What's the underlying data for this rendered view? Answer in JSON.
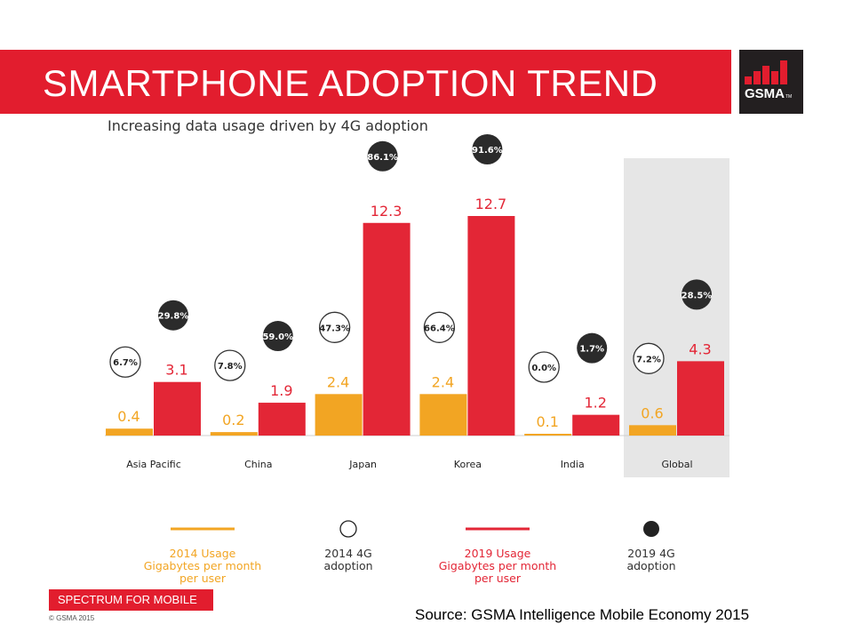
{
  "header": {
    "title": "SMARTPHONE ADOPTION TREND",
    "logo_text": "GSMA",
    "logo_tm": "TM"
  },
  "footer": {
    "tag": "SPECTRUM FOR MOBILE",
    "copyright": "© GSMA 2015",
    "source": "Source: GSMA Intelligence Mobile Economy 2015"
  },
  "colors": {
    "brand_red": "#e21d2e",
    "bar_2014": "#f2a523",
    "bar_2019": "#e32636",
    "badge_dark": "#2b2b2b",
    "highlight_panel": "#e6e6e6"
  },
  "chart_data": {
    "type": "bar",
    "title": "Increasing data usage driven by 4G adoption",
    "categories": [
      "Asia Pacific",
      "China",
      "Japan",
      "Korea",
      "India",
      "Global"
    ],
    "highlighted_category": "Global",
    "series": [
      {
        "name": "2014 Usage Gigabytes per month per user",
        "values": [
          0.4,
          0.2,
          2.4,
          2.4,
          0.1,
          0.6
        ],
        "labels": [
          "0.4",
          "0.2",
          "2.4",
          "2.4",
          "0.1",
          "0.6"
        ]
      },
      {
        "name": "2019 Usage Gigabytes per month per user",
        "values": [
          3.1,
          1.9,
          12.3,
          12.7,
          1.2,
          4.3
        ],
        "labels": [
          "3.1",
          "1.9",
          "12.3",
          "12.7",
          "1.2",
          "4.3"
        ]
      }
    ],
    "adoption_4g": [
      {
        "name": "2014 4G adoption",
        "marker": "open-circle",
        "values": [
          6.7,
          7.8,
          47.3,
          66.4,
          0.0,
          7.2
        ],
        "labels": [
          "6.7%",
          "7.8%",
          "47.3%",
          "66.4%",
          "0.0%",
          "7.2%"
        ]
      },
      {
        "name": "2019 4G adoption",
        "marker": "filled-circle",
        "values": [
          29.8,
          59.0,
          86.1,
          91.6,
          1.7,
          28.5
        ],
        "labels": [
          "29.8%",
          "59.0%",
          "86.1%",
          "91.6%",
          "1.7%",
          "28.5%"
        ]
      }
    ],
    "legend": {
      "position": "bottom",
      "items": [
        {
          "lines": [
            "2014 Usage",
            "Gigabytes per month",
            "per user"
          ],
          "swatch": "line",
          "color": "#f2a523"
        },
        {
          "lines": [
            "2014 4G",
            "adoption"
          ],
          "swatch": "open-circle",
          "color": "#222222"
        },
        {
          "lines": [
            "2019 Usage",
            "Gigabytes per month",
            "per user"
          ],
          "swatch": "line",
          "color": "#e32636"
        },
        {
          "lines": [
            "2019 4G",
            "adoption"
          ],
          "swatch": "filled-circle",
          "color": "#222222"
        }
      ]
    },
    "ylim": [
      0,
      13.5
    ],
    "grid": false
  }
}
